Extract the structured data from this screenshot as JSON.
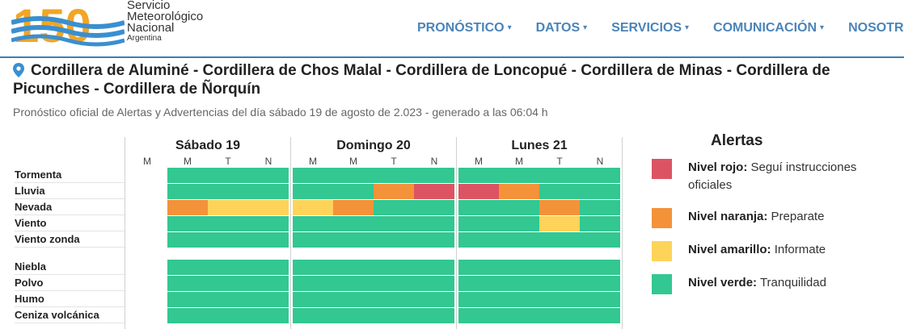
{
  "header": {
    "logo_number": "150",
    "logo_lines": [
      "Servicio",
      "Meteorológico",
      "Nacional"
    ],
    "logo_country": "Argentina",
    "nav": [
      {
        "label": "PRONÓSTICO",
        "caret": "▾"
      },
      {
        "label": "DATOS",
        "caret": "▾"
      },
      {
        "label": "SERVICIOS",
        "caret": "▾"
      },
      {
        "label": "COMUNICACIÓN",
        "caret": "▾"
      },
      {
        "label": "NOSOTRO",
        "caret": ""
      }
    ]
  },
  "page": {
    "title": "Cordillera de Aluminé - Cordillera de Chos Malal - Cordillera de Loncopué - Cordillera de Minas - Cordillera de Picunches - Cordillera de Ñorquín",
    "subtitle": "Pronóstico oficial de Alertas y Advertencias del día sábado 19 de agosto de 2.023 - generado a las 06:04 h"
  },
  "colors": {
    "verde": "#33c791",
    "amarillo": "#fed35a",
    "naranja": "#f4923a",
    "rojo": "#dc5463",
    "brand_blue": "#4a84b8"
  },
  "forecast": {
    "days": [
      {
        "label": "Sábado 19",
        "periods": [
          "M",
          "M",
          "T",
          "N"
        ]
      },
      {
        "label": "Domingo 20",
        "periods": [
          "M",
          "M",
          "T",
          "N"
        ]
      },
      {
        "label": "Lunes 21",
        "periods": [
          "M",
          "M",
          "T",
          "N"
        ]
      }
    ],
    "rows": [
      {
        "label": "Tormenta",
        "cells": [
          "",
          "verde",
          "verde",
          "verde",
          "verde",
          "verde",
          "verde",
          "verde",
          "verde",
          "verde",
          "verde",
          "verde"
        ]
      },
      {
        "label": "Lluvia",
        "cells": [
          "",
          "verde",
          "verde",
          "verde",
          "verde",
          "verde",
          "naranja",
          "rojo",
          "rojo",
          "naranja",
          "verde",
          "verde"
        ]
      },
      {
        "label": "Nevada",
        "cells": [
          "",
          "naranja",
          "amarillo",
          "amarillo",
          "amarillo",
          "naranja",
          "verde",
          "verde",
          "verde",
          "verde",
          "naranja",
          "verde"
        ]
      },
      {
        "label": "Viento",
        "cells": [
          "",
          "verde",
          "verde",
          "verde",
          "verde",
          "verde",
          "verde",
          "verde",
          "verde",
          "verde",
          "amarillo",
          "verde"
        ]
      },
      {
        "label": "Viento zonda",
        "cells": [
          "",
          "verde",
          "verde",
          "verde",
          "verde",
          "verde",
          "verde",
          "verde",
          "verde",
          "verde",
          "verde",
          "verde"
        ]
      },
      {
        "label": "Niebla",
        "cells": [
          "",
          "verde",
          "verde",
          "verde",
          "verde",
          "verde",
          "verde",
          "verde",
          "verde",
          "verde",
          "verde",
          "verde"
        ]
      },
      {
        "label": "Polvo",
        "cells": [
          "",
          "verde",
          "verde",
          "verde",
          "verde",
          "verde",
          "verde",
          "verde",
          "verde",
          "verde",
          "verde",
          "verde"
        ]
      },
      {
        "label": "Humo",
        "cells": [
          "",
          "verde",
          "verde",
          "verde",
          "verde",
          "verde",
          "verde",
          "verde",
          "verde",
          "verde",
          "verde",
          "verde"
        ]
      },
      {
        "label": "Ceniza volcánica",
        "cells": [
          "",
          "verde",
          "verde",
          "verde",
          "verde",
          "verde",
          "verde",
          "verde",
          "verde",
          "verde",
          "verde",
          "verde"
        ]
      }
    ]
  },
  "legend": {
    "title": "Alertas",
    "items": [
      {
        "level": "rojo",
        "name": "Nivel rojo:",
        "desc": "Seguí instrucciones oficiales"
      },
      {
        "level": "naranja",
        "name": "Nivel naranja:",
        "desc": "Preparate"
      },
      {
        "level": "amarillo",
        "name": "Nivel amarillo:",
        "desc": "Informate"
      },
      {
        "level": "verde",
        "name": "Nivel verde:",
        "desc": "Tranquilidad"
      }
    ]
  }
}
